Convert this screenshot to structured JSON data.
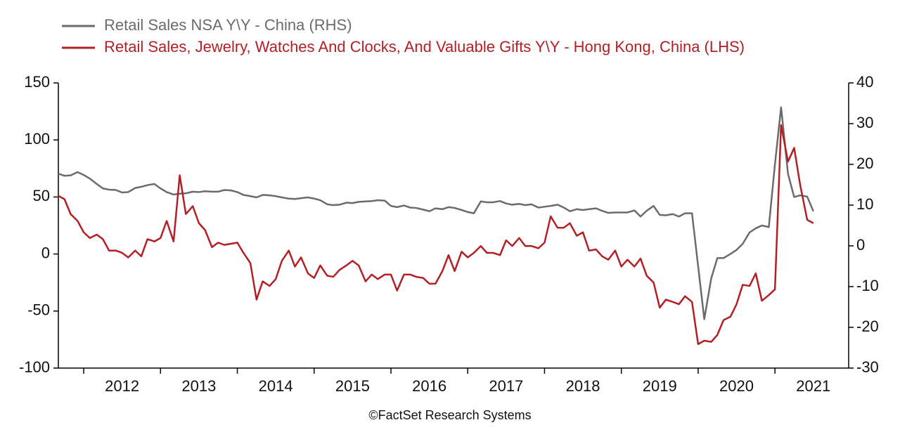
{
  "chart_data": {
    "type": "line",
    "source": "©FactSet Research Systems",
    "x": [
      2011.67,
      2011.75,
      2011.83,
      2011.92,
      2012.0,
      2012.08,
      2012.17,
      2012.25,
      2012.33,
      2012.42,
      2012.5,
      2012.58,
      2012.67,
      2012.75,
      2012.83,
      2012.92,
      2013.0,
      2013.08,
      2013.17,
      2013.25,
      2013.33,
      2013.42,
      2013.5,
      2013.58,
      2013.67,
      2013.75,
      2013.83,
      2013.92,
      2014.0,
      2014.08,
      2014.17,
      2014.25,
      2014.33,
      2014.42,
      2014.5,
      2014.58,
      2014.67,
      2014.75,
      2014.83,
      2014.92,
      2015.0,
      2015.08,
      2015.17,
      2015.25,
      2015.33,
      2015.42,
      2015.5,
      2015.58,
      2015.67,
      2015.75,
      2015.83,
      2015.92,
      2016.0,
      2016.08,
      2016.17,
      2016.25,
      2016.33,
      2016.42,
      2016.5,
      2016.58,
      2016.67,
      2016.75,
      2016.83,
      2016.92,
      2017.0,
      2017.08,
      2017.17,
      2017.25,
      2017.33,
      2017.42,
      2017.5,
      2017.58,
      2017.67,
      2017.75,
      2017.83,
      2017.92,
      2018.0,
      2018.08,
      2018.17,
      2018.25,
      2018.33,
      2018.42,
      2018.5,
      2018.58,
      2018.67,
      2018.75,
      2018.83,
      2018.92,
      2019.0,
      2019.08,
      2019.17,
      2019.25,
      2019.33,
      2019.42,
      2019.5,
      2019.58,
      2019.67,
      2019.75,
      2019.83,
      2019.92,
      2020.0,
      2020.08,
      2020.17,
      2020.25,
      2020.33,
      2020.42,
      2020.5,
      2020.58,
      2020.67,
      2020.75,
      2020.83,
      2020.92,
      2021.0,
      2021.08,
      2021.17,
      2021.25,
      2021.33,
      2021.42,
      2021.5
    ],
    "series": [
      {
        "name": "Retail Sales NSA Y\\Y - China (RHS)",
        "color": "#6b6b6b",
        "axis": "y2",
        "values": [
          17.7,
          17.2,
          17.3,
          18.1,
          17.4,
          16.5,
          15.2,
          14.1,
          13.8,
          13.7,
          13.1,
          13.2,
          14.2,
          14.5,
          14.9,
          15.2,
          14.1,
          13.2,
          12.6,
          12.8,
          12.9,
          13.3,
          13.2,
          13.4,
          13.3,
          13.3,
          13.7,
          13.6,
          13.2,
          12.5,
          12.2,
          11.9,
          12.5,
          12.4,
          12.2,
          11.9,
          11.6,
          11.5,
          11.7,
          11.9,
          11.6,
          11.2,
          10.2,
          10.0,
          10.1,
          10.6,
          10.5,
          10.8,
          10.9,
          11.0,
          11.2,
          11.1,
          9.8,
          9.5,
          9.9,
          9.4,
          9.3,
          8.9,
          8.5,
          9.2,
          9.0,
          9.5,
          9.3,
          8.8,
          8.3,
          8.0,
          10.9,
          10.7,
          10.7,
          11.0,
          10.4,
          10.1,
          10.3,
          10.0,
          10.2,
          9.4,
          9.6,
          9.8,
          10.1,
          9.4,
          8.5,
          9.0,
          8.8,
          9.0,
          9.2,
          8.6,
          8.1,
          8.2,
          8.2,
          8.2,
          8.7,
          7.2,
          8.6,
          9.8,
          7.6,
          7.5,
          7.8,
          7.2,
          8.0,
          8.0,
          -5,
          -18,
          -8,
          -3,
          -3,
          -2,
          -1,
          0.5,
          3.3,
          4.3,
          5.0,
          4.6,
          20,
          34,
          17.7,
          12,
          12.4,
          12.1,
          8.5
        ]
      },
      {
        "name": "Retail Sales, Jewelry, Watches And Clocks, And Valuable Gifts Y\\Y - Hong Kong, China (LHS)",
        "color": "#b22025",
        "axis": "y",
        "values": [
          51,
          48,
          35,
          29,
          19,
          14,
          17,
          13,
          3,
          3,
          1,
          -3,
          3,
          -2,
          13,
          11,
          14,
          29,
          11,
          69,
          35,
          42,
          27,
          21,
          6,
          10,
          8,
          9,
          10,
          1,
          -8,
          -40,
          -24,
          -28,
          -22,
          -6,
          3,
          -11,
          -3,
          -17,
          -21,
          -10,
          -19,
          -20,
          -14,
          -10,
          -6,
          -10,
          -24,
          -18,
          -22,
          -18,
          -18,
          -32,
          -18,
          -18,
          -20,
          -21,
          -26,
          -26,
          -15,
          -1,
          -15,
          2,
          -3,
          1,
          7,
          1,
          1,
          -1,
          12,
          7,
          14,
          7,
          7,
          5,
          10,
          33,
          23,
          23,
          27,
          16,
          19,
          3,
          4,
          -2,
          -5,
          3,
          -11,
          -5,
          -11,
          -4,
          -19,
          -25,
          -47,
          -40,
          -42,
          -44,
          -37,
          -42,
          -79,
          -76,
          -77,
          -71,
          -58,
          -55,
          -44,
          -27,
          -28,
          -17,
          -41,
          -36,
          -31,
          113,
          81,
          93,
          60,
          30,
          27
        ]
      }
    ],
    "xlim": [
      2011.67,
      2021.96
    ],
    "xticks": [
      2012,
      2013,
      2014,
      2015,
      2016,
      2017,
      2018,
      2019,
      2020,
      2021
    ],
    "ylim": [
      -100,
      150
    ],
    "yticks": [
      -100,
      -50,
      0,
      50,
      100,
      150
    ],
    "y2lim": [
      -30,
      40
    ],
    "y2ticks": [
      -30,
      -20,
      -10,
      0,
      10,
      20,
      30,
      40
    ],
    "grid": false,
    "legend": "top-left"
  }
}
